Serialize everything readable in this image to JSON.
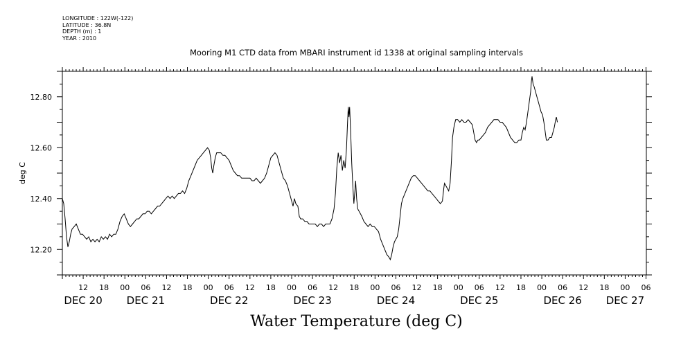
{
  "header": {
    "meta_lines": [
      "LONGITUDE : 122W(-122)",
      "LATITUDE : 36.8N",
      "DEPTH (m) : 1",
      "YEAR : 2010"
    ],
    "title": "Mooring M1 CTD data from MBARI instrument id 1338 at original sampling intervals",
    "footer_title": "Water Temperature (deg C)"
  },
  "chart_data": {
    "type": "line",
    "title": "Mooring M1 CTD data from MBARI instrument id 1338 at original sampling intervals",
    "xlabel": "",
    "ylabel": "deg C",
    "ylim": [
      12.1,
      12.9
    ],
    "xlim_hours": [
      6,
      150
    ],
    "x_unit": "hours since DEC 20 00:00, 2010",
    "y_ticks": [
      12.2,
      12.4,
      12.6,
      12.8
    ],
    "y_tick_labels": [
      "12.20",
      "12.40",
      "12.60",
      "12.80"
    ],
    "x_hour_labels": [
      "12",
      "18",
      "00",
      "06",
      "12",
      "18",
      "00",
      "06",
      "12",
      "18",
      "00",
      "06",
      "12",
      "18",
      "00",
      "06",
      "12",
      "18",
      "00",
      "06",
      "12",
      "18",
      "00",
      "06",
      "12",
      "18",
      "00",
      "06"
    ],
    "x_hour_label_times": [
      12,
      18,
      24,
      30,
      36,
      42,
      48,
      54,
      60,
      66,
      72,
      78,
      84,
      90,
      96,
      102,
      108,
      114,
      120,
      126,
      132,
      138,
      144,
      150,
      156,
      162,
      168,
      174
    ],
    "x_day_labels": [
      {
        "label": "DEC 20",
        "t": 12
      },
      {
        "label": "DEC 21",
        "t": 30
      },
      {
        "label": "DEC 22",
        "t": 54
      },
      {
        "label": "DEC 23",
        "t": 78
      },
      {
        "label": "DEC 24",
        "t": 102
      },
      {
        "label": "DEC 25",
        "t": 126
      },
      {
        "label": "DEC 26",
        "t": 150
      },
      {
        "label": "DEC 27",
        "t": 168
      }
    ],
    "grid": false,
    "series": [
      {
        "points": [
          [
            6.0,
            12.4
          ],
          [
            6.4,
            12.38
          ],
          [
            6.8,
            12.32
          ],
          [
            7.2,
            12.25
          ],
          [
            7.6,
            12.21
          ],
          [
            8.0,
            12.23
          ],
          [
            8.4,
            12.26
          ],
          [
            8.8,
            12.28
          ],
          [
            9.4,
            12.29
          ],
          [
            10.0,
            12.3
          ],
          [
            10.6,
            12.28
          ],
          [
            11.2,
            12.26
          ],
          [
            11.8,
            12.26
          ],
          [
            12.4,
            12.25
          ],
          [
            13.0,
            12.24
          ],
          [
            13.6,
            12.25
          ],
          [
            14.2,
            12.23
          ],
          [
            14.8,
            12.24
          ],
          [
            15.4,
            12.23
          ],
          [
            16.0,
            12.24
          ],
          [
            16.6,
            12.23
          ],
          [
            17.2,
            12.25
          ],
          [
            17.8,
            12.24
          ],
          [
            18.4,
            12.25
          ],
          [
            19.0,
            12.24
          ],
          [
            19.6,
            12.26
          ],
          [
            20.2,
            12.25
          ],
          [
            20.8,
            12.26
          ],
          [
            21.4,
            12.26
          ],
          [
            22.0,
            12.28
          ],
          [
            22.6,
            12.31
          ],
          [
            23.2,
            12.33
          ],
          [
            23.8,
            12.34
          ],
          [
            24.4,
            12.32
          ],
          [
            25.0,
            12.3
          ],
          [
            25.6,
            12.29
          ],
          [
            26.2,
            12.3
          ],
          [
            26.8,
            12.31
          ],
          [
            27.4,
            12.32
          ],
          [
            28.0,
            12.32
          ],
          [
            28.6,
            12.33
          ],
          [
            29.2,
            12.34
          ],
          [
            29.8,
            12.34
          ],
          [
            30.4,
            12.35
          ],
          [
            31.0,
            12.35
          ],
          [
            31.6,
            12.34
          ],
          [
            32.2,
            12.35
          ],
          [
            32.8,
            12.36
          ],
          [
            33.4,
            12.37
          ],
          [
            34.0,
            12.37
          ],
          [
            34.6,
            12.38
          ],
          [
            35.2,
            12.39
          ],
          [
            35.8,
            12.4
          ],
          [
            36.4,
            12.41
          ],
          [
            37.0,
            12.4
          ],
          [
            37.6,
            12.41
          ],
          [
            38.2,
            12.4
          ],
          [
            38.8,
            12.41
          ],
          [
            39.4,
            12.42
          ],
          [
            40.0,
            12.42
          ],
          [
            40.6,
            12.43
          ],
          [
            41.2,
            12.42
          ],
          [
            41.8,
            12.44
          ],
          [
            42.4,
            12.47
          ],
          [
            43.0,
            12.49
          ],
          [
            43.6,
            12.51
          ],
          [
            44.2,
            12.53
          ],
          [
            44.8,
            12.55
          ],
          [
            45.4,
            12.56
          ],
          [
            46.0,
            12.57
          ],
          [
            46.6,
            12.58
          ],
          [
            47.2,
            12.59
          ],
          [
            47.8,
            12.6
          ],
          [
            48.3,
            12.59
          ],
          [
            48.7,
            12.56
          ],
          [
            49.0,
            12.52
          ],
          [
            49.3,
            12.5
          ],
          [
            49.6,
            12.53
          ],
          [
            50.0,
            12.56
          ],
          [
            50.4,
            12.58
          ],
          [
            51.0,
            12.58
          ],
          [
            51.6,
            12.58
          ],
          [
            52.2,
            12.57
          ],
          [
            52.8,
            12.57
          ],
          [
            53.4,
            12.56
          ],
          [
            54.0,
            12.55
          ],
          [
            54.6,
            12.53
          ],
          [
            55.2,
            12.51
          ],
          [
            55.8,
            12.5
          ],
          [
            56.4,
            12.49
          ],
          [
            57.0,
            12.49
          ],
          [
            57.6,
            12.48
          ],
          [
            58.2,
            12.48
          ],
          [
            58.8,
            12.48
          ],
          [
            59.4,
            12.48
          ],
          [
            60.0,
            12.48
          ],
          [
            60.6,
            12.47
          ],
          [
            61.2,
            12.47
          ],
          [
            61.8,
            12.48
          ],
          [
            62.4,
            12.47
          ],
          [
            63.0,
            12.46
          ],
          [
            63.6,
            12.47
          ],
          [
            64.2,
            12.48
          ],
          [
            64.8,
            12.5
          ],
          [
            65.4,
            12.53
          ],
          [
            66.0,
            12.56
          ],
          [
            66.6,
            12.57
          ],
          [
            67.2,
            12.58
          ],
          [
            67.8,
            12.57
          ],
          [
            68.4,
            12.54
          ],
          [
            69.0,
            12.51
          ],
          [
            69.6,
            12.48
          ],
          [
            70.2,
            12.47
          ],
          [
            70.8,
            12.45
          ],
          [
            71.4,
            12.42
          ],
          [
            72.0,
            12.39
          ],
          [
            72.4,
            12.37
          ],
          [
            72.8,
            12.4
          ],
          [
            73.2,
            12.38
          ],
          [
            73.8,
            12.37
          ],
          [
            74.2,
            12.33
          ],
          [
            74.6,
            12.32
          ],
          [
            75.2,
            12.32
          ],
          [
            75.8,
            12.31
          ],
          [
            76.4,
            12.31
          ],
          [
            77.0,
            12.3
          ],
          [
            77.6,
            12.3
          ],
          [
            78.2,
            12.3
          ],
          [
            78.8,
            12.3
          ],
          [
            79.4,
            12.29
          ],
          [
            80.0,
            12.3
          ],
          [
            80.6,
            12.3
          ],
          [
            81.2,
            12.29
          ],
          [
            81.8,
            12.3
          ],
          [
            82.4,
            12.3
          ],
          [
            83.0,
            12.3
          ],
          [
            83.6,
            12.32
          ],
          [
            84.2,
            12.36
          ],
          [
            84.6,
            12.42
          ],
          [
            85.0,
            12.52
          ],
          [
            85.4,
            12.58
          ],
          [
            85.8,
            12.54
          ],
          [
            86.2,
            12.57
          ],
          [
            86.6,
            12.51
          ],
          [
            87.0,
            12.55
          ],
          [
            87.4,
            12.52
          ],
          [
            87.8,
            12.6
          ],
          [
            88.1,
            12.7
          ],
          [
            88.3,
            12.76
          ],
          [
            88.5,
            12.72
          ],
          [
            88.7,
            12.76
          ],
          [
            89.0,
            12.66
          ],
          [
            89.3,
            12.54
          ],
          [
            89.6,
            12.45
          ],
          [
            89.9,
            12.38
          ],
          [
            90.2,
            12.43
          ],
          [
            90.4,
            12.47
          ],
          [
            90.7,
            12.4
          ],
          [
            91.0,
            12.36
          ],
          [
            91.4,
            12.35
          ],
          [
            91.8,
            12.34
          ],
          [
            92.2,
            12.33
          ],
          [
            92.8,
            12.31
          ],
          [
            93.4,
            12.3
          ],
          [
            94.0,
            12.29
          ],
          [
            94.6,
            12.3
          ],
          [
            95.2,
            12.29
          ],
          [
            95.8,
            12.29
          ],
          [
            96.4,
            12.28
          ],
          [
            97.0,
            12.27
          ],
          [
            97.6,
            12.24
          ],
          [
            98.2,
            12.22
          ],
          [
            98.8,
            12.2
          ],
          [
            99.4,
            12.18
          ],
          [
            100.0,
            12.17
          ],
          [
            100.4,
            12.16
          ],
          [
            100.8,
            12.18
          ],
          [
            101.2,
            12.21
          ],
          [
            101.6,
            12.23
          ],
          [
            102.0,
            12.24
          ],
          [
            102.4,
            12.25
          ],
          [
            102.8,
            12.28
          ],
          [
            103.2,
            12.33
          ],
          [
            103.6,
            12.38
          ],
          [
            104.0,
            12.4
          ],
          [
            104.6,
            12.42
          ],
          [
            105.2,
            12.44
          ],
          [
            105.8,
            12.46
          ],
          [
            106.4,
            12.48
          ],
          [
            107.0,
            12.49
          ],
          [
            107.6,
            12.49
          ],
          [
            108.2,
            12.48
          ],
          [
            108.8,
            12.47
          ],
          [
            109.4,
            12.46
          ],
          [
            110.0,
            12.45
          ],
          [
            110.6,
            12.44
          ],
          [
            111.2,
            12.43
          ],
          [
            111.8,
            12.43
          ],
          [
            112.4,
            12.42
          ],
          [
            113.0,
            12.41
          ],
          [
            113.6,
            12.4
          ],
          [
            114.2,
            12.39
          ],
          [
            114.8,
            12.38
          ],
          [
            115.4,
            12.39
          ],
          [
            115.8,
            12.44
          ],
          [
            116.0,
            12.46
          ],
          [
            116.4,
            12.45
          ],
          [
            116.8,
            12.44
          ],
          [
            117.2,
            12.43
          ],
          [
            117.6,
            12.46
          ],
          [
            118.0,
            12.55
          ],
          [
            118.3,
            12.64
          ],
          [
            118.7,
            12.68
          ],
          [
            119.2,
            12.71
          ],
          [
            119.8,
            12.71
          ],
          [
            120.4,
            12.7
          ],
          [
            121.0,
            12.71
          ],
          [
            121.6,
            12.7
          ],
          [
            122.2,
            12.7
          ],
          [
            122.8,
            12.71
          ],
          [
            123.4,
            12.7
          ],
          [
            124.0,
            12.69
          ],
          [
            124.4,
            12.66
          ],
          [
            124.8,
            12.63
          ],
          [
            125.2,
            12.62
          ],
          [
            125.6,
            12.63
          ],
          [
            126.0,
            12.63
          ],
          [
            126.6,
            12.64
          ],
          [
            127.2,
            12.65
          ],
          [
            127.8,
            12.66
          ],
          [
            128.4,
            12.68
          ],
          [
            129.0,
            12.69
          ],
          [
            129.6,
            12.7
          ],
          [
            130.2,
            12.71
          ],
          [
            130.8,
            12.71
          ],
          [
            131.4,
            12.71
          ],
          [
            132.0,
            12.7
          ],
          [
            132.6,
            12.7
          ],
          [
            133.2,
            12.69
          ],
          [
            133.8,
            12.68
          ],
          [
            134.4,
            12.66
          ],
          [
            135.0,
            12.64
          ],
          [
            135.6,
            12.63
          ],
          [
            136.2,
            12.62
          ],
          [
            136.8,
            12.62
          ],
          [
            137.4,
            12.63
          ],
          [
            138.0,
            12.63
          ],
          [
            138.4,
            12.66
          ],
          [
            138.8,
            12.68
          ],
          [
            139.2,
            12.67
          ],
          [
            139.6,
            12.7
          ],
          [
            140.0,
            12.74
          ],
          [
            140.4,
            12.78
          ],
          [
            140.8,
            12.82
          ],
          [
            141.0,
            12.86
          ],
          [
            141.2,
            12.88
          ],
          [
            141.5,
            12.85
          ],
          [
            141.8,
            12.84
          ],
          [
            142.2,
            12.82
          ],
          [
            142.6,
            12.8
          ],
          [
            143.0,
            12.78
          ],
          [
            143.4,
            12.76
          ],
          [
            143.8,
            12.74
          ],
          [
            144.2,
            12.73
          ],
          [
            144.6,
            12.7
          ],
          [
            145.0,
            12.66
          ],
          [
            145.3,
            12.63
          ],
          [
            145.8,
            12.63
          ],
          [
            146.3,
            12.64
          ],
          [
            146.8,
            12.64
          ],
          [
            147.2,
            12.66
          ],
          [
            147.6,
            12.68
          ],
          [
            148.0,
            12.71
          ],
          [
            148.2,
            12.72
          ],
          [
            148.5,
            12.7
          ]
        ]
      }
    ]
  }
}
